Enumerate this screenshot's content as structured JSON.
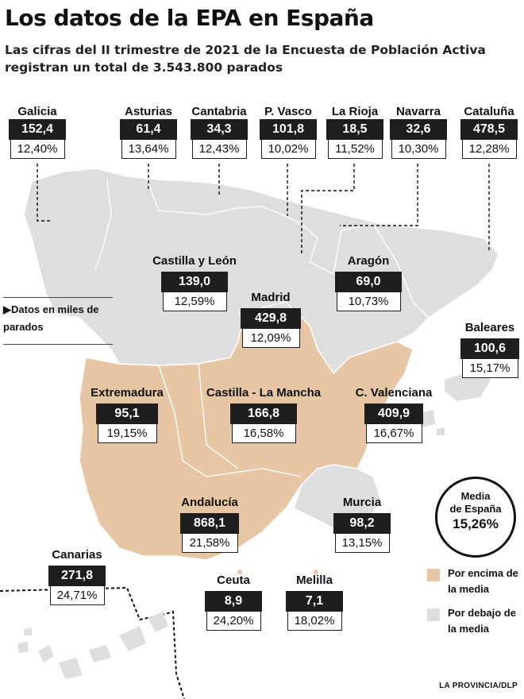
{
  "title": "Los datos de la EPA en España",
  "subtitle": "Las cifras del II trimestre de 2021 de la Encuesta de Población Activa registran un total de 3.543.800 parados",
  "legend_note": "Datos en miles de parados",
  "media": {
    "label1": "Media",
    "label2": "de España",
    "value": "15,26%"
  },
  "legend": {
    "above": "Por encima de la media",
    "below": "Por debajo de la media"
  },
  "colors": {
    "above": "#e6c6a4",
    "below": "#dedede",
    "value_box": "#1e1e1e"
  },
  "source": "LA PROVINCIA/DLP",
  "regions": {
    "galicia": {
      "name": "Galicia",
      "value": "152,4",
      "pct": "12,40%",
      "category": "below"
    },
    "asturias": {
      "name": "Asturias",
      "value": "61,4",
      "pct": "13,64%",
      "category": "below"
    },
    "cantabria": {
      "name": "Cantabria",
      "value": "34,3",
      "pct": "12,43%",
      "category": "below"
    },
    "pvasco": {
      "name": "P. Vasco",
      "value": "101,8",
      "pct": "10,02%",
      "category": "below"
    },
    "larioja": {
      "name": "La Rioja",
      "value": "18,5",
      "pct": "11,52%",
      "category": "below"
    },
    "navarra": {
      "name": "Navarra",
      "value": "32,6",
      "pct": "10,30%",
      "category": "below"
    },
    "cataluna": {
      "name": "Cataluña",
      "value": "478,5",
      "pct": "12,28%",
      "category": "below"
    },
    "castillayleon": {
      "name": "Castilla y León",
      "value": "139,0",
      "pct": "12,59%",
      "category": "below"
    },
    "aragon": {
      "name": "Aragón",
      "value": "69,0",
      "pct": "10,73%",
      "category": "below"
    },
    "madrid": {
      "name": "Madrid",
      "value": "429,8",
      "pct": "12,09%",
      "category": "below"
    },
    "baleares": {
      "name": "Baleares",
      "value": "100,6",
      "pct": "15,17%",
      "category": "below"
    },
    "extremadura": {
      "name": "Extremadura",
      "value": "95,1",
      "pct": "19,15%",
      "category": "above"
    },
    "castillalamancha": {
      "name": "Castilla - La Mancha",
      "value": "166,8",
      "pct": "16,58%",
      "category": "above"
    },
    "cvalenciana": {
      "name": "C. Valenciana",
      "value": "409,9",
      "pct": "16,67%",
      "category": "above"
    },
    "andalucia": {
      "name": "Andalucía",
      "value": "868,1",
      "pct": "21,58%",
      "category": "above"
    },
    "murcia": {
      "name": "Murcia",
      "value": "98,2",
      "pct": "13,15%",
      "category": "below"
    },
    "canarias": {
      "name": "Canarias",
      "value": "271,8",
      "pct": "24,71%",
      "category": "above"
    },
    "ceuta": {
      "name": "Ceuta",
      "value": "8,9",
      "pct": "24,20%",
      "category": "above"
    },
    "melilla": {
      "name": "Melilla",
      "value": "7,1",
      "pct": "18,02%",
      "category": "above"
    }
  }
}
